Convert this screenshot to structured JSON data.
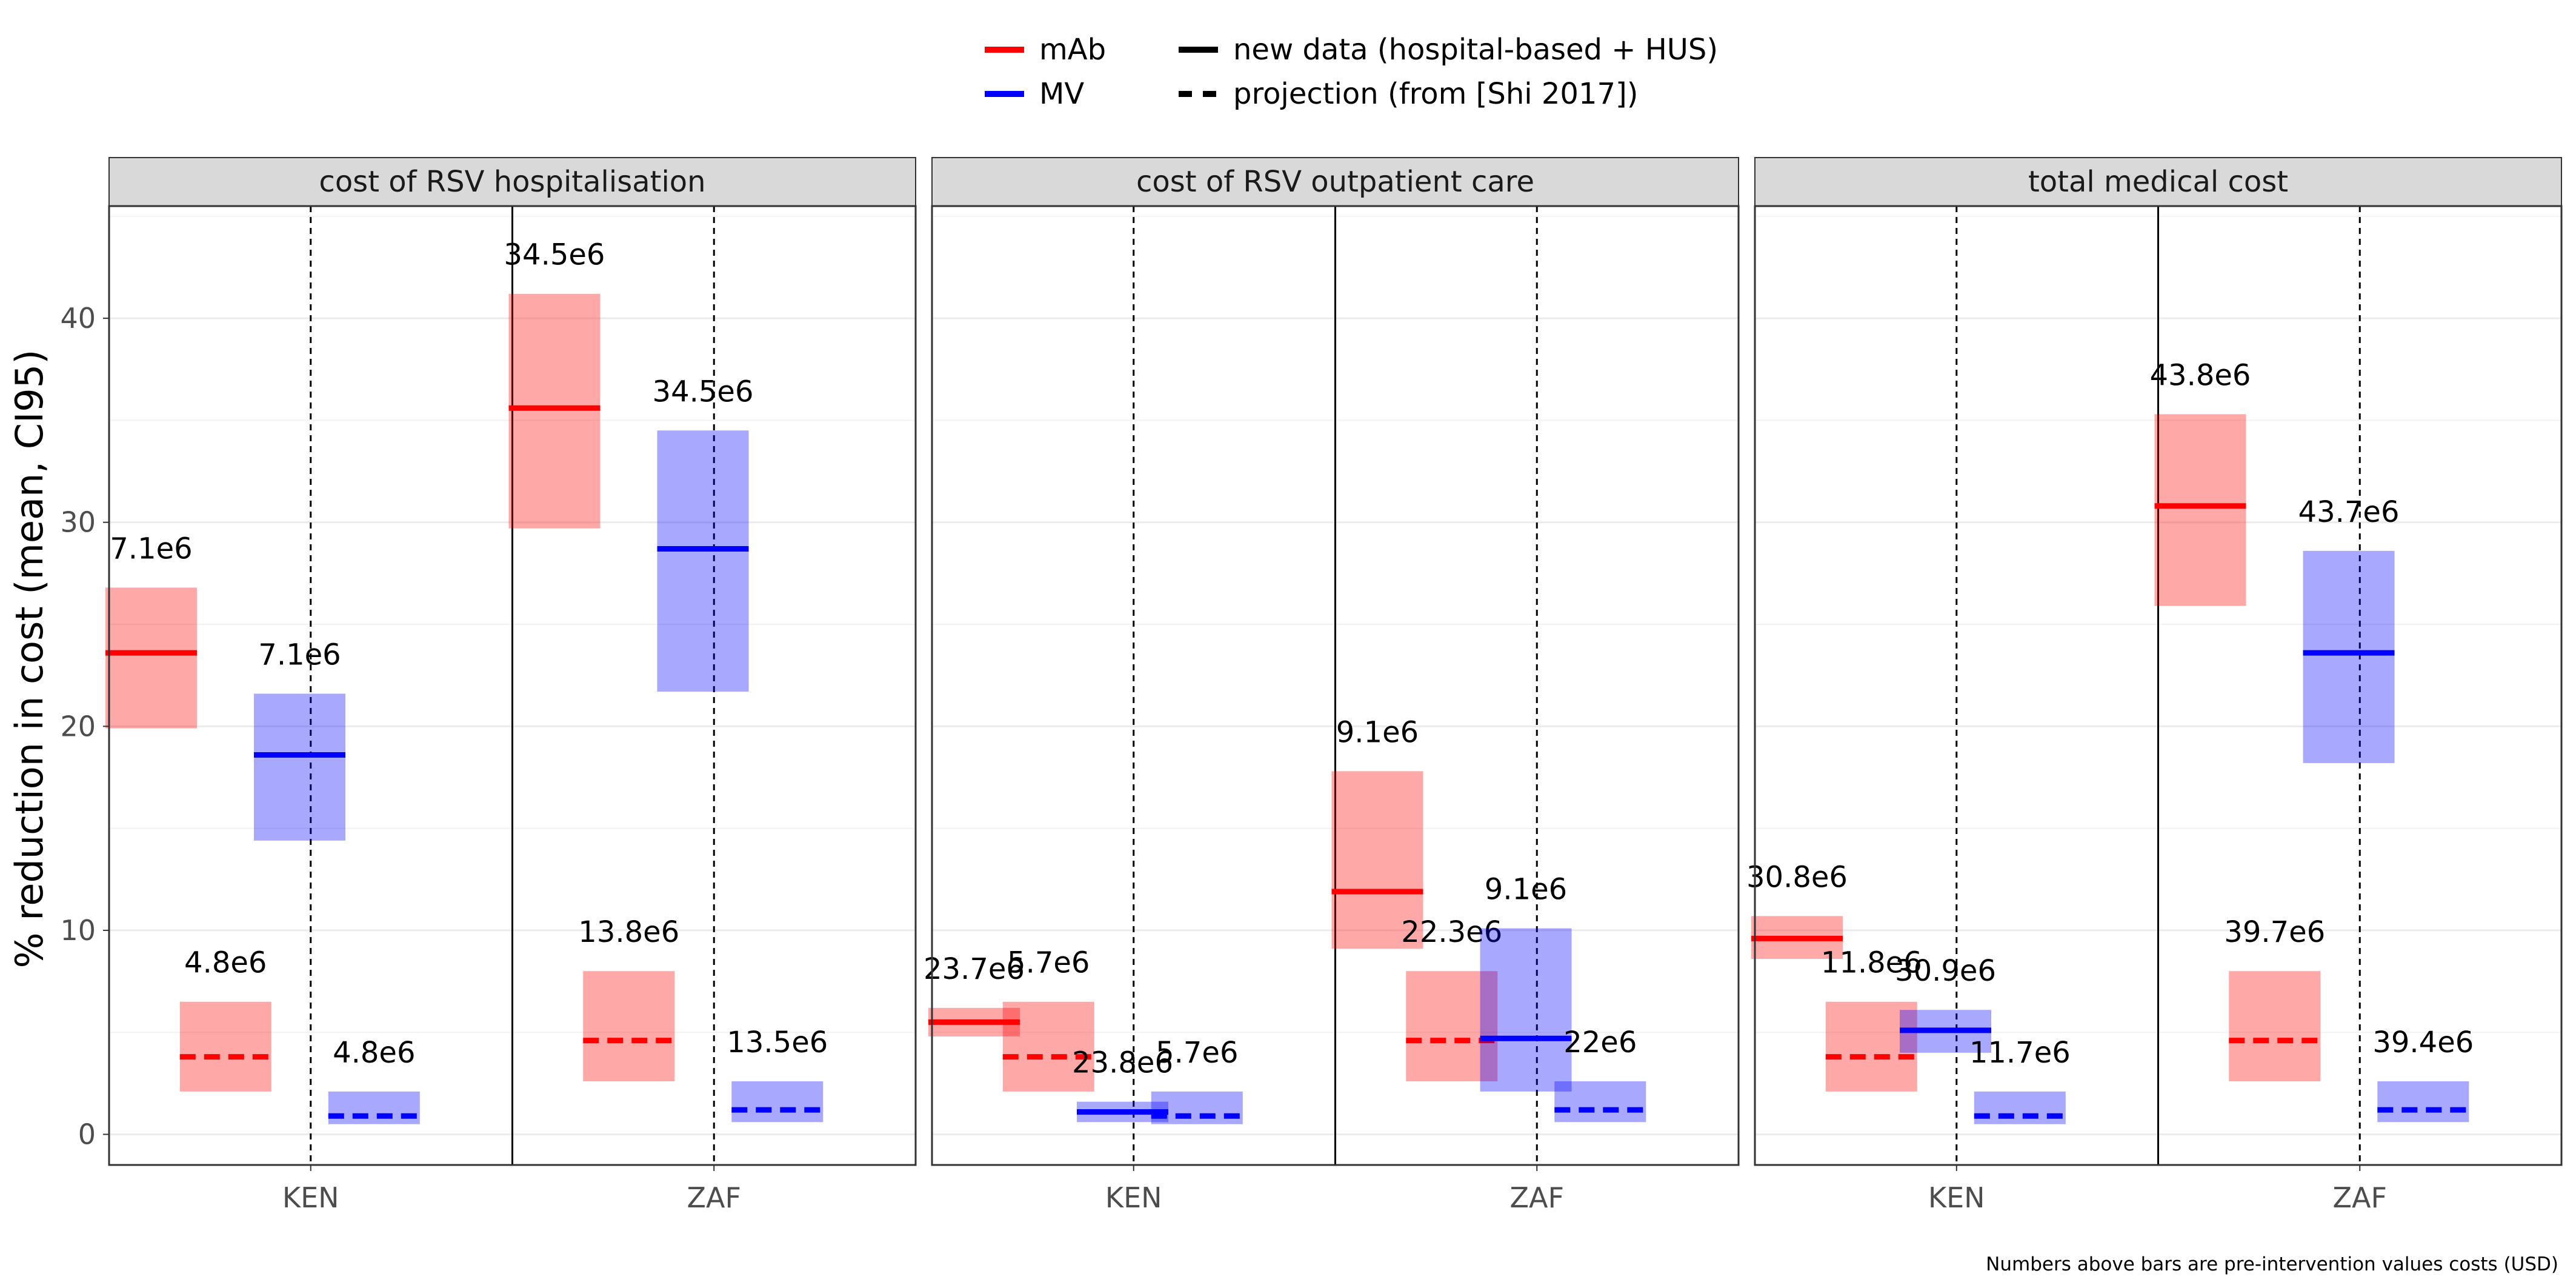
{
  "chart_data": {
    "type": "bar",
    "ylabel": "% reduction in cost (mean, CI95)",
    "xlabel": "",
    "ylim": [
      -1.5,
      45.5
    ],
    "yticks": [
      0,
      10,
      20,
      30,
      40
    ],
    "grid": "major and minor, light grey",
    "legend": {
      "placement": "top",
      "colors": [
        {
          "label": "mAb",
          "color": "#ff0000"
        },
        {
          "label": "MV",
          "color": "#0000ff"
        }
      ],
      "linetypes": [
        {
          "label": "new data (hospital-based + HUS)",
          "dash": "solid"
        },
        {
          "label": "projection (from [Shi 2017])",
          "dash": "dashed"
        }
      ]
    },
    "colors": {
      "mAb": "#ff0000",
      "MV": "#0000ff"
    },
    "categories": [
      "KEN",
      "ZAF"
    ],
    "caption": "Numbers above bars are pre-intervention values costs (USD)",
    "panels": [
      {
        "title": "cost of RSV hospitalisation",
        "bars": [
          {
            "country": "KEN",
            "intervention": "mAb",
            "source": "new",
            "mean": 23.6,
            "low": 19.9,
            "high": 26.8,
            "label": "7.1e6"
          },
          {
            "country": "KEN",
            "intervention": "mAb",
            "source": "projection",
            "mean": 3.8,
            "low": 2.1,
            "high": 6.5,
            "label": "4.8e6"
          },
          {
            "country": "KEN",
            "intervention": "MV",
            "source": "new",
            "mean": 18.6,
            "low": 14.4,
            "high": 21.6,
            "label": "7.1e6"
          },
          {
            "country": "KEN",
            "intervention": "MV",
            "source": "projection",
            "mean": 0.9,
            "low": 0.5,
            "high": 2.1,
            "label": "4.8e6"
          },
          {
            "country": "ZAF",
            "intervention": "mAb",
            "source": "new",
            "mean": 35.6,
            "low": 29.7,
            "high": 41.2,
            "label": "34.5e6"
          },
          {
            "country": "ZAF",
            "intervention": "mAb",
            "source": "projection",
            "mean": 4.6,
            "low": 2.6,
            "high": 8.0,
            "label": "13.8e6"
          },
          {
            "country": "ZAF",
            "intervention": "MV",
            "source": "new",
            "mean": 28.7,
            "low": 21.7,
            "high": 34.5,
            "label": "34.5e6"
          },
          {
            "country": "ZAF",
            "intervention": "MV",
            "source": "projection",
            "mean": 1.2,
            "low": 0.6,
            "high": 2.6,
            "label": "13.5e6"
          }
        ]
      },
      {
        "title": "cost of RSV outpatient care",
        "bars": [
          {
            "country": "KEN",
            "intervention": "mAb",
            "source": "new",
            "mean": 5.5,
            "low": 4.8,
            "high": 6.2,
            "label": "23.7e6"
          },
          {
            "country": "KEN",
            "intervention": "mAb",
            "source": "projection",
            "mean": 3.8,
            "low": 2.1,
            "high": 6.5,
            "label": "5.7e6"
          },
          {
            "country": "KEN",
            "intervention": "MV",
            "source": "new",
            "mean": 1.1,
            "low": 0.6,
            "high": 1.6,
            "label": "23.8e6"
          },
          {
            "country": "KEN",
            "intervention": "MV",
            "source": "projection",
            "mean": 0.9,
            "low": 0.5,
            "high": 2.1,
            "label": "5.7e6"
          },
          {
            "country": "ZAF",
            "intervention": "mAb",
            "source": "new",
            "mean": 11.9,
            "low": 9.1,
            "high": 17.8,
            "label": "9.1e6"
          },
          {
            "country": "ZAF",
            "intervention": "mAb",
            "source": "projection",
            "mean": 4.6,
            "low": 2.6,
            "high": 8.0,
            "label": "22.3e6"
          },
          {
            "country": "ZAF",
            "intervention": "MV",
            "source": "new",
            "mean": 4.7,
            "low": 2.1,
            "high": 10.1,
            "label": "9.1e6"
          },
          {
            "country": "ZAF",
            "intervention": "MV",
            "source": "projection",
            "mean": 1.2,
            "low": 0.6,
            "high": 2.6,
            "label": "22e6"
          }
        ]
      },
      {
        "title": "total medical cost",
        "bars": [
          {
            "country": "KEN",
            "intervention": "mAb",
            "source": "new",
            "mean": 9.6,
            "low": 8.6,
            "high": 10.7,
            "label": "30.8e6"
          },
          {
            "country": "KEN",
            "intervention": "mAb",
            "source": "projection",
            "mean": 3.8,
            "low": 2.1,
            "high": 6.5,
            "label": "11.8e6"
          },
          {
            "country": "KEN",
            "intervention": "MV",
            "source": "new",
            "mean": 5.1,
            "low": 4.0,
            "high": 6.1,
            "label": "30.9e6"
          },
          {
            "country": "KEN",
            "intervention": "MV",
            "source": "projection",
            "mean": 0.9,
            "low": 0.5,
            "high": 2.1,
            "label": "11.7e6"
          },
          {
            "country": "ZAF",
            "intervention": "mAb",
            "source": "new",
            "mean": 30.8,
            "low": 25.9,
            "high": 35.3,
            "label": "43.8e6"
          },
          {
            "country": "ZAF",
            "intervention": "mAb",
            "source": "projection",
            "mean": 4.6,
            "low": 2.6,
            "high": 8.0,
            "label": "39.7e6"
          },
          {
            "country": "ZAF",
            "intervention": "MV",
            "source": "new",
            "mean": 23.6,
            "low": 18.2,
            "high": 28.6,
            "label": "43.7e6"
          },
          {
            "country": "ZAF",
            "intervention": "MV",
            "source": "projection",
            "mean": 1.2,
            "low": 0.6,
            "high": 2.6,
            "label": "39.4e6"
          }
        ]
      }
    ]
  }
}
